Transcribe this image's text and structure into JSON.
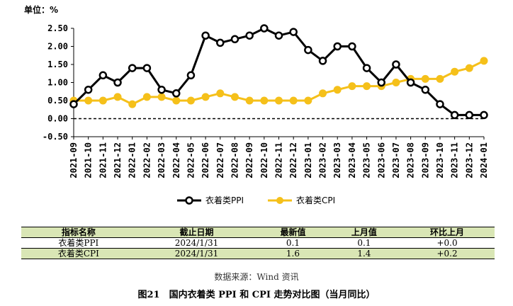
{
  "chart_data": {
    "type": "line",
    "unit_label": "单位：%",
    "x": [
      "2021-09",
      "2021-10",
      "2021-11",
      "2021-12",
      "2022-01",
      "2022-02",
      "2022-03",
      "2022-04",
      "2022-05",
      "2022-06",
      "2022-07",
      "2022-08",
      "2022-09",
      "2022-10",
      "2022-11",
      "2022-12",
      "2023-01",
      "2023-02",
      "2023-03",
      "2023-04",
      "2023-05",
      "2023-06",
      "2023-07",
      "2023-08",
      "2023-09",
      "2023-10",
      "2023-11",
      "2023-12",
      "2024-01"
    ],
    "yticks": [
      "2.50",
      "2.00",
      "1.50",
      "1.00",
      "0.50",
      "0.00",
      "-0.50"
    ],
    "ylim": [
      -0.5,
      2.5
    ],
    "reference_line": 0,
    "series": [
      {
        "name": "衣着类PPI",
        "color": "#000000",
        "values": [
          0.4,
          0.8,
          1.2,
          1.0,
          1.4,
          1.4,
          0.8,
          0.7,
          1.2,
          2.3,
          2.1,
          2.2,
          2.3,
          2.5,
          2.3,
          2.4,
          1.9,
          1.6,
          2.0,
          2.0,
          1.4,
          1.0,
          1.5,
          1.0,
          0.8,
          0.4,
          0.1,
          0.1,
          0.1
        ]
      },
      {
        "name": "衣着类CPI",
        "color": "#f5c01a",
        "values": [
          0.5,
          0.5,
          0.5,
          0.6,
          0.4,
          0.6,
          0.6,
          0.5,
          0.5,
          0.6,
          0.7,
          0.6,
          0.5,
          0.5,
          0.5,
          0.5,
          0.5,
          0.7,
          0.8,
          0.9,
          0.9,
          0.9,
          1.0,
          1.1,
          1.1,
          1.1,
          1.3,
          1.4,
          1.6
        ]
      }
    ],
    "legend": "bottom"
  },
  "table": {
    "headers": [
      "指标名称",
      "截止日期",
      "最新值",
      "上月值",
      "环比上月"
    ],
    "rows": [
      [
        "衣着类PPI",
        "2024/1/31",
        "0.1",
        "0.1",
        "+0.0"
      ],
      [
        "衣着类CPI",
        "2024/1/31",
        "1.6",
        "1.4",
        "+0.2"
      ]
    ]
  },
  "source": "数据来源：Wind 资讯",
  "caption": "图21　国内衣着类 PPI 和 CPI 走势对比图（当月同比）"
}
